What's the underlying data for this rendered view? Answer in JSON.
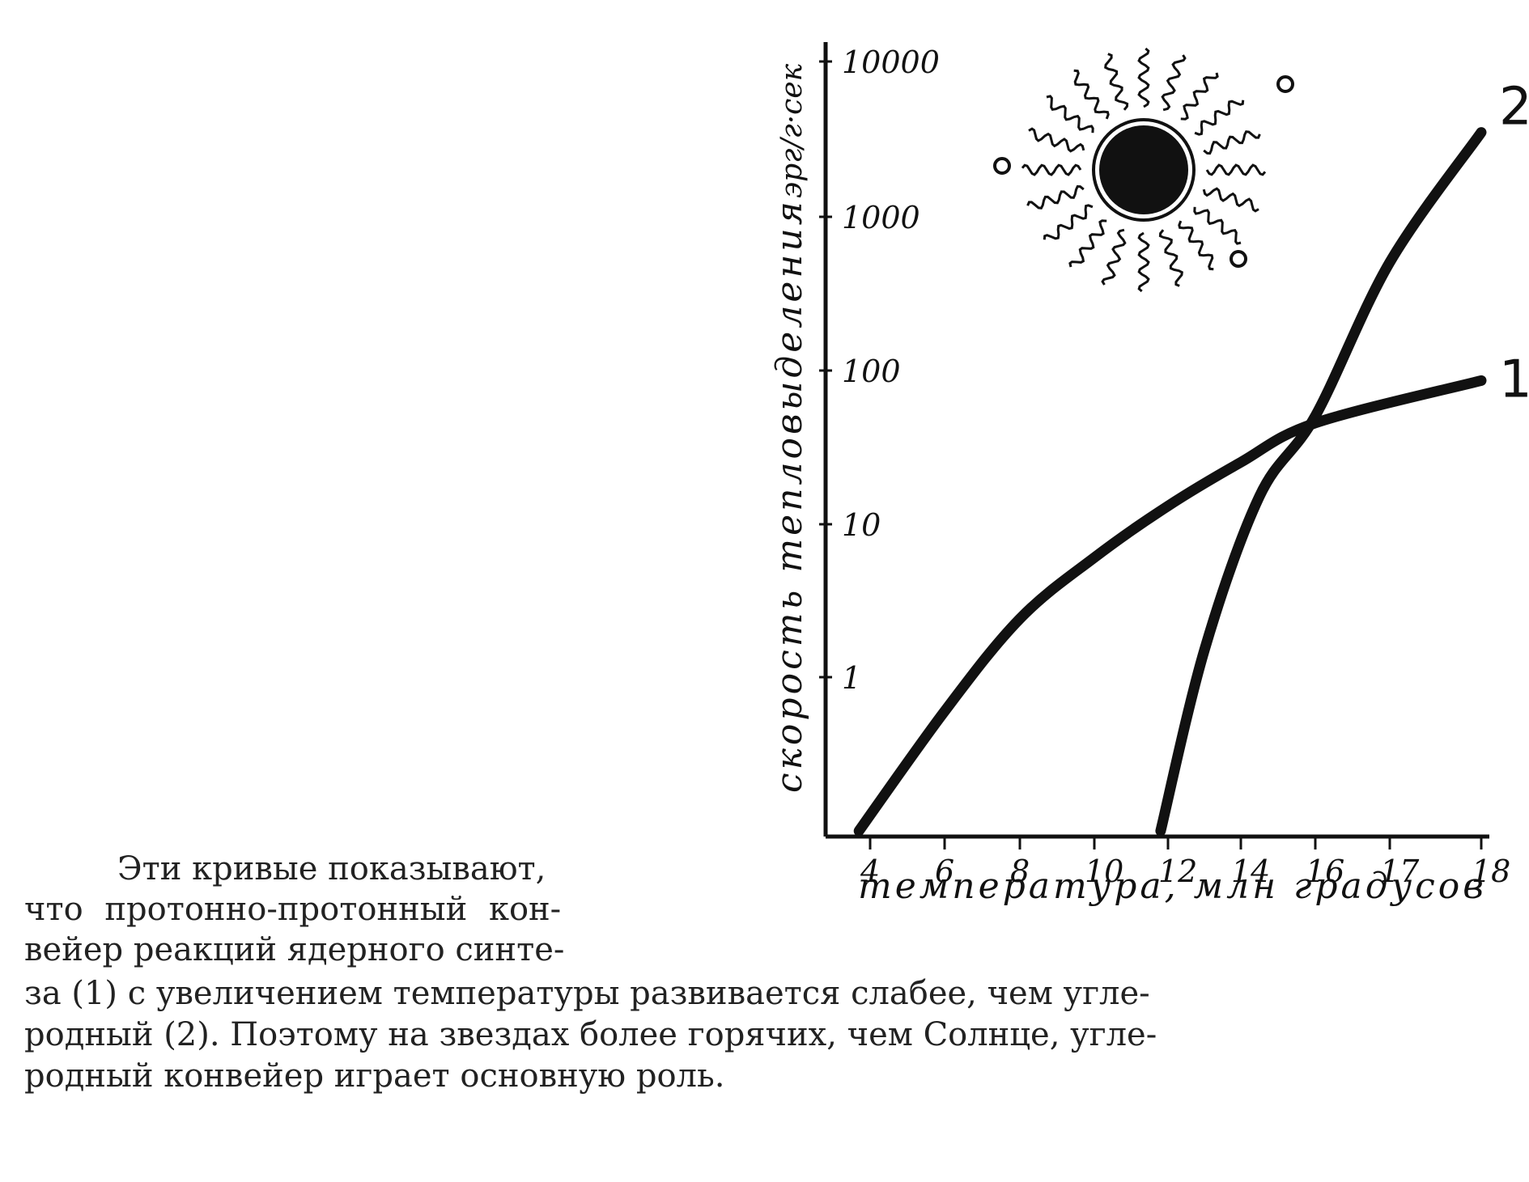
{
  "chart_data": {
    "type": "line",
    "xlabel": "температура, млн градусов",
    "ylabel": "скорость тепловыделения",
    "yunit": "эрг/г·сек",
    "x_ticks": [
      "4",
      "6",
      "8",
      "10",
      "12",
      "14",
      "16",
      "17",
      "18"
    ],
    "y_ticks": [
      "1",
      "10",
      "100",
      "1000",
      "10000"
    ],
    "y_scale": "log",
    "grid": false,
    "series": [
      {
        "name": "1",
        "points": [
          [
            3.7,
            0.1
          ],
          [
            6,
            0.6
          ],
          [
            8,
            2.4
          ],
          [
            10,
            6
          ],
          [
            12,
            13
          ],
          [
            14,
            25
          ],
          [
            16,
            45
          ],
          [
            18,
            85
          ]
        ]
      },
      {
        "name": "2",
        "points": [
          [
            11.8,
            0.1
          ],
          [
            13,
            1.5
          ],
          [
            14.5,
            15
          ],
          [
            16,
            50
          ],
          [
            17,
            500
          ],
          [
            18,
            3500
          ]
        ]
      }
    ],
    "illustration": "sun-with-stars-icon"
  },
  "caption": {
    "lines": [
      "Эти кривые показывают,",
      "что протонно-протонный кон-",
      "вейер реакций ядерного синте-",
      "за (1) с увеличением температуры развивается слабее, чем угле-",
      "родный (2). Поэтому на звездах более горячих, чем Солнце, угле-",
      "родный конвейер играет основную роль."
    ]
  }
}
